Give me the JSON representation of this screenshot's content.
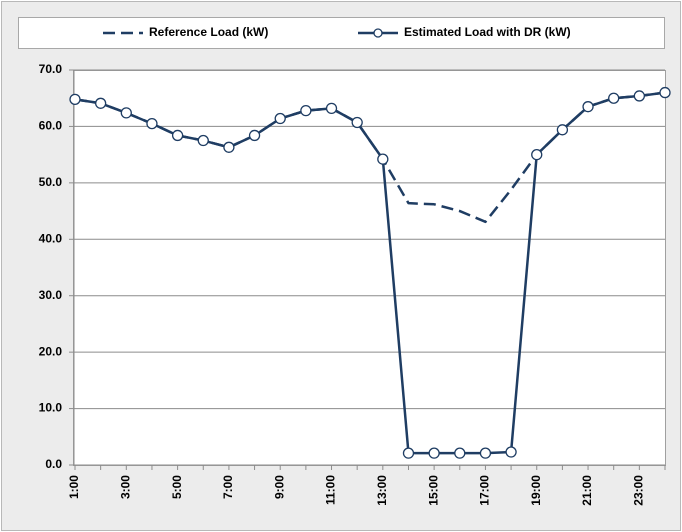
{
  "chart_data": {
    "type": "line",
    "categories": [
      "1:00",
      null,
      "3:00",
      null,
      "5:00",
      null,
      "7:00",
      null,
      "9:00",
      null,
      "11:00",
      null,
      "13:00",
      null,
      "15:00",
      null,
      "17:00",
      null,
      "19:00",
      null,
      "21:00",
      null,
      "23:00",
      null
    ],
    "series": [
      {
        "name": "Reference Load (kW)",
        "color": "#1f3d63",
        "dash": true,
        "markers": false,
        "values": [
          64.8,
          64.1,
          62.4,
          60.5,
          58.4,
          57.5,
          56.3,
          58.4,
          61.4,
          62.8,
          63.2,
          60.7,
          54.2,
          46.4,
          46.2,
          45.0,
          43.1,
          48.8,
          55.0,
          59.4,
          63.5,
          65.0,
          65.4,
          66.0
        ]
      },
      {
        "name": "Estimated Load with DR (kW)",
        "color": "#1f3d63",
        "dash": false,
        "markers": true,
        "values": [
          64.8,
          64.1,
          62.4,
          60.5,
          58.4,
          57.5,
          56.3,
          58.4,
          61.4,
          62.8,
          63.2,
          60.7,
          54.2,
          2.1,
          2.1,
          2.1,
          2.1,
          2.3,
          55.0,
          59.4,
          63.5,
          65.0,
          65.4,
          66.0
        ]
      }
    ],
    "ylim": [
      0,
      70
    ],
    "yticks": [
      {
        "value": 0,
        "label": "0.0"
      },
      {
        "value": 10,
        "label": "10.0"
      },
      {
        "value": 20,
        "label": "20.0"
      },
      {
        "value": 30,
        "label": "30.0"
      },
      {
        "value": 40,
        "label": "40.0"
      },
      {
        "value": 50,
        "label": "50.0"
      },
      {
        "value": 60,
        "label": "60.0"
      },
      {
        "value": 70,
        "label": "70.0"
      }
    ],
    "grid": true,
    "legend": "top"
  }
}
